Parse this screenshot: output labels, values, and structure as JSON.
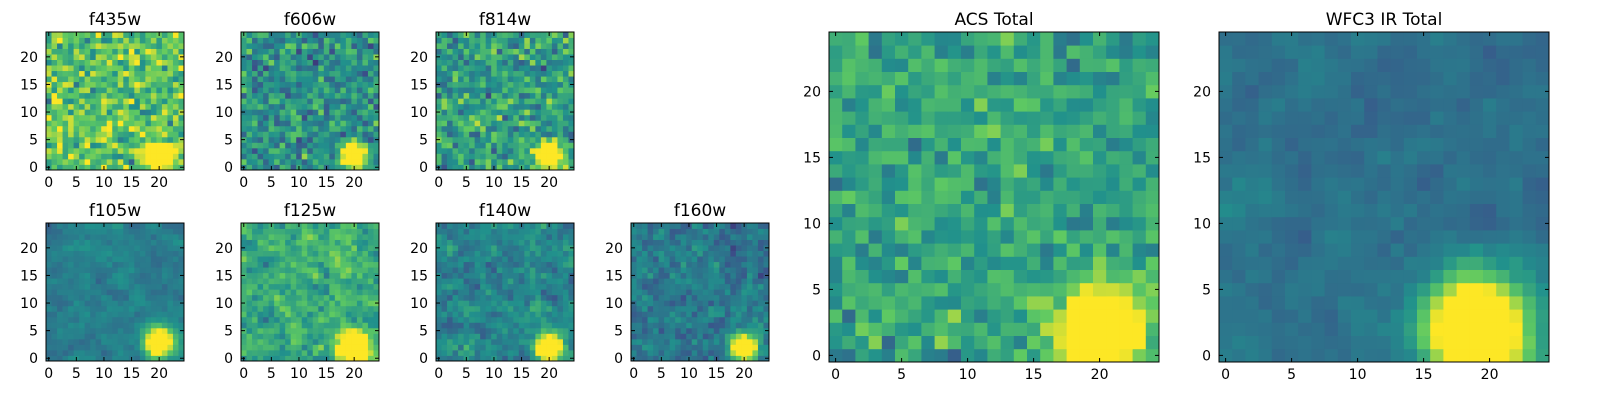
{
  "colormap": [
    "#440154",
    "#3b528b",
    "#21918c",
    "#5ec962",
    "#fde725"
  ],
  "chart_data": [
    {
      "id": "f435w",
      "type": "heatmap",
      "title": "f435w",
      "grid_size": 25,
      "xlim": [
        0,
        25
      ],
      "ylim": [
        0,
        25
      ],
      "xticks": [
        0,
        5,
        10,
        15,
        20
      ],
      "yticks": [
        0,
        5,
        10,
        15,
        20
      ],
      "source": {
        "x": 20,
        "y": 2,
        "radius": 1.5
      },
      "background_level": 0.72,
      "noise": 0.2,
      "smooth": 0,
      "seed": 11
    },
    {
      "id": "f606w",
      "type": "heatmap",
      "title": "f606w",
      "grid_size": 25,
      "xlim": [
        0,
        25
      ],
      "ylim": [
        0,
        25
      ],
      "xticks": [
        0,
        5,
        10,
        15,
        20
      ],
      "yticks": [
        0,
        5,
        10,
        15,
        20
      ],
      "source": {
        "x": 20,
        "y": 2,
        "radius": 1.5
      },
      "background_level": 0.5,
      "noise": 0.17,
      "smooth": 0,
      "seed": 23
    },
    {
      "id": "f814w",
      "type": "heatmap",
      "title": "f814w",
      "grid_size": 25,
      "xlim": [
        0,
        25
      ],
      "ylim": [
        0,
        25
      ],
      "xticks": [
        0,
        5,
        10,
        15,
        20
      ],
      "yticks": [
        0,
        5,
        10,
        15,
        20
      ],
      "source": {
        "x": 20,
        "y": 2,
        "radius": 1.5
      },
      "background_level": 0.56,
      "noise": 0.18,
      "smooth": 0,
      "seed": 37
    },
    {
      "id": "f105w",
      "type": "heatmap",
      "title": "f105w",
      "grid_size": 25,
      "xlim": [
        0,
        25
      ],
      "ylim": [
        0,
        25
      ],
      "xticks": [
        0,
        5,
        10,
        15,
        20
      ],
      "yticks": [
        0,
        5,
        10,
        15,
        20
      ],
      "source": {
        "x": 20,
        "y": 3,
        "radius": 1.7
      },
      "background_level": 0.42,
      "noise": 0.13,
      "smooth": 2,
      "seed": 41
    },
    {
      "id": "f125w",
      "type": "heatmap",
      "title": "f125w",
      "grid_size": 25,
      "xlim": [
        0,
        25
      ],
      "ylim": [
        0,
        25
      ],
      "xticks": [
        0,
        5,
        10,
        15,
        20
      ],
      "yticks": [
        0,
        5,
        10,
        15,
        20
      ],
      "source": {
        "x": 20,
        "y": 2,
        "radius": 1.7
      },
      "background_level": 0.62,
      "noise": 0.2,
      "smooth": 1,
      "seed": 53
    },
    {
      "id": "f140w",
      "type": "heatmap",
      "title": "f140w",
      "grid_size": 25,
      "xlim": [
        0,
        25
      ],
      "ylim": [
        0,
        25
      ],
      "xticks": [
        0,
        5,
        10,
        15,
        20
      ],
      "yticks": [
        0,
        5,
        10,
        15,
        20
      ],
      "source": {
        "x": 20,
        "y": 2,
        "radius": 1.6
      },
      "background_level": 0.46,
      "noise": 0.16,
      "smooth": 1,
      "seed": 67
    },
    {
      "id": "f160w",
      "type": "heatmap",
      "title": "f160w",
      "grid_size": 25,
      "xlim": [
        0,
        25
      ],
      "ylim": [
        0,
        25
      ],
      "xticks": [
        0,
        5,
        10,
        15,
        20
      ],
      "yticks": [
        0,
        5,
        10,
        15,
        20
      ],
      "source": {
        "x": 20,
        "y": 2,
        "radius": 1.6
      },
      "background_level": 0.4,
      "noise": 0.17,
      "smooth": 1,
      "seed": 79
    },
    {
      "id": "acs-total",
      "type": "heatmap",
      "title": "ACS Total",
      "grid_size": 25,
      "xlim": [
        0,
        25
      ],
      "ylim": [
        0,
        25
      ],
      "xticks": [
        0,
        5,
        10,
        15,
        20
      ],
      "yticks": [
        0,
        5,
        10,
        15,
        20
      ],
      "source": {
        "x": 20,
        "y": 2,
        "radius": 2.0
      },
      "background_level": 0.58,
      "noise": 0.13,
      "smooth": 0,
      "seed": 97
    },
    {
      "id": "wfc3-ir-total",
      "type": "heatmap",
      "title": "WFC3 IR Total",
      "grid_size": 25,
      "xlim": [
        0,
        25
      ],
      "ylim": [
        0,
        25
      ],
      "xticks": [
        0,
        5,
        10,
        15,
        20
      ],
      "yticks": [
        0,
        5,
        10,
        15,
        20
      ],
      "source": {
        "x": 19,
        "y": 2,
        "radius": 2.6
      },
      "background_level": 0.38,
      "noise": 0.1,
      "smooth": 2,
      "seed": 101
    }
  ]
}
